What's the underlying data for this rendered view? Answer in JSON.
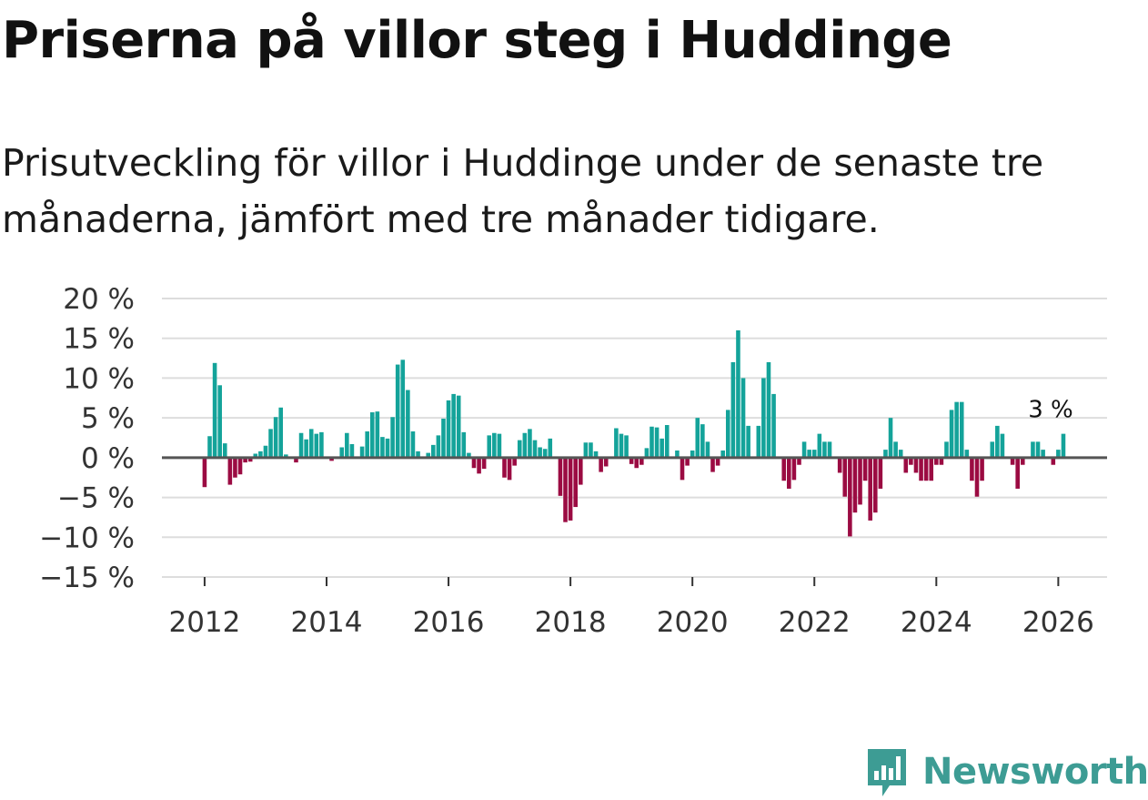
{
  "header": {
    "title": "Priserna på villor steg i Huddinge",
    "subtitle": "Prisutveckling för villor i Huddinge under de senaste tre månaderna, jämfört med tre månader tidigare."
  },
  "logo": {
    "text": "Newsworthy",
    "icon": "newsworthy-bar-chart-icon",
    "color": "#3d9c94"
  },
  "chart_data": {
    "type": "bar",
    "title": "Priserna på villor steg i Huddinge",
    "xlabel": "",
    "ylabel": "",
    "x_start": 2012.0,
    "x_step_months": 1,
    "xlim": [
      2011.3,
      2026.8
    ],
    "ylim": [
      -15,
      20
    ],
    "yticks": [
      20,
      15,
      10,
      5,
      0,
      -5,
      -10,
      -15
    ],
    "ytick_labels": [
      "20 %",
      "15 %",
      "10 %",
      "5 %",
      "0 %",
      "−5 %",
      "−10 %",
      "−15 %"
    ],
    "xticks": [
      2012,
      2014,
      2016,
      2018,
      2020,
      2022,
      2024,
      2026
    ],
    "xtick_labels": [
      "2012",
      "2014",
      "2016",
      "2018",
      "2020",
      "2022",
      "2024",
      "2026"
    ],
    "grid": true,
    "colors": {
      "positive": "#14a39a",
      "negative": "#9b0b42",
      "zero_line": "#555555",
      "grid": "#dddddd"
    },
    "annotation": {
      "text": "3 %",
      "index": 169
    },
    "values": [
      -3.7,
      2.7,
      11.9,
      9.1,
      1.8,
      -3.4,
      -2.5,
      -2.1,
      -0.6,
      -0.5,
      0.5,
      0.8,
      1.5,
      3.6,
      5.1,
      6.3,
      0.4,
      0,
      -0.6,
      3.1,
      2.3,
      3.6,
      3.0,
      3.2,
      0,
      -0.4,
      0,
      1.3,
      3.1,
      1.7,
      0,
      1.4,
      3.3,
      5.7,
      5.8,
      2.6,
      2.4,
      5.1,
      11.7,
      12.3,
      8.5,
      3.3,
      0.8,
      0,
      0.6,
      1.6,
      2.8,
      4.9,
      7.2,
      8.0,
      7.8,
      3.2,
      0.6,
      -1.3,
      -2.0,
      -1.4,
      2.8,
      3.1,
      3.0,
      -2.5,
      -2.8,
      -1.0,
      2.2,
      3.1,
      3.6,
      2.2,
      1.3,
      1.1,
      2.4,
      0,
      -4.8,
      -8.1,
      -7.9,
      -6.2,
      -3.4,
      1.9,
      1.9,
      0.8,
      -1.8,
      -1.1,
      0,
      3.7,
      3.0,
      2.8,
      -0.8,
      -1.3,
      -0.9,
      1.2,
      3.9,
      3.8,
      2.4,
      4.1,
      0,
      0.9,
      -2.8,
      -1.0,
      0.9,
      5.0,
      4.2,
      2.0,
      -1.8,
      -1.0,
      0.9,
      6.0,
      12.0,
      16.0,
      10.0,
      4.0,
      0,
      4.0,
      10.0,
      12.0,
      8.0,
      0,
      -2.9,
      -3.9,
      -2.8,
      -0.9,
      2.0,
      1.0,
      1.0,
      3.0,
      2.0,
      2.0,
      0,
      -1.9,
      -4.9,
      -9.9,
      -6.9,
      -5.9,
      -2.9,
      -7.9,
      -6.9,
      -3.9,
      1.0,
      5.0,
      2.0,
      1.0,
      -1.9,
      -0.9,
      -1.9,
      -2.9,
      -2.9,
      -2.9,
      -0.9,
      -0.9,
      2.0,
      6.0,
      7.0,
      7.0,
      1.0,
      -2.9,
      -4.9,
      -2.9,
      0,
      2.0,
      4.0,
      3.0,
      0,
      -0.9,
      -3.9,
      -0.9,
      0,
      2.0,
      2.0,
      1.0,
      0,
      -0.9,
      1.0,
      3.0
    ]
  }
}
